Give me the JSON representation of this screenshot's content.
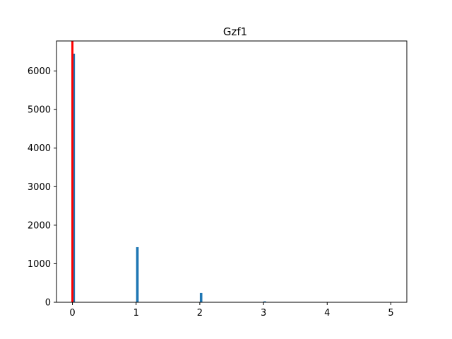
{
  "chart_data": {
    "type": "bar",
    "title": "Gzf1",
    "xlabel": "",
    "ylabel": "",
    "xlim": [
      -0.25,
      5.25
    ],
    "ylim": [
      0,
      6780
    ],
    "x_ticks": [
      "0",
      "1",
      "2",
      "3",
      "4",
      "5"
    ],
    "y_ticks": [
      "0",
      "1000",
      "2000",
      "3000",
      "4000",
      "5000",
      "6000"
    ],
    "bar_width": 0.04,
    "bars": [
      {
        "x": 0.02,
        "value": 6450
      },
      {
        "x": 1.02,
        "value": 1430
      },
      {
        "x": 2.02,
        "value": 240
      },
      {
        "x": 3.02,
        "value": 25
      }
    ],
    "vline": {
      "x": 0,
      "color": "#ff0000"
    },
    "bar_color": "#1f77b4",
    "grid": false,
    "legend": "none"
  }
}
